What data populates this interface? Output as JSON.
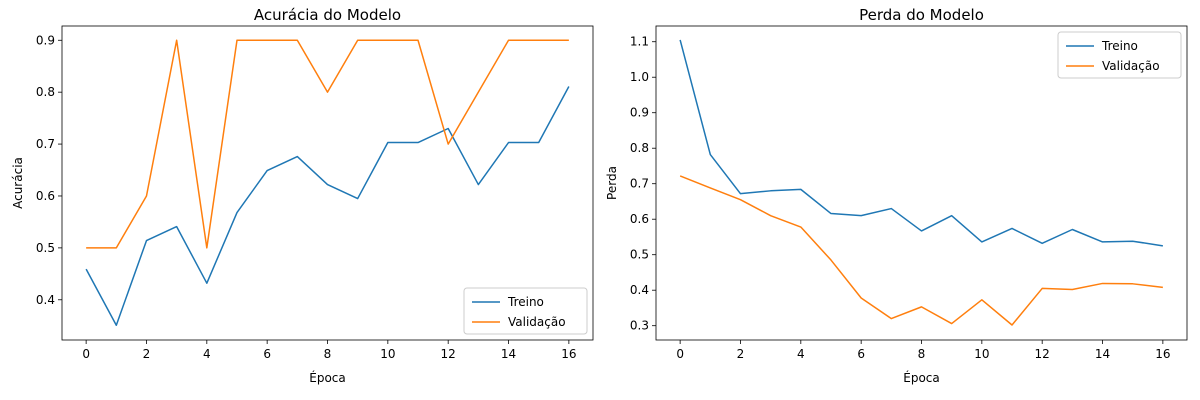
{
  "chart_data": [
    {
      "type": "line",
      "title": "Acurácia do Modelo",
      "xlabel": "Época",
      "ylabel": "Acurácia",
      "x": [
        0,
        1,
        2,
        3,
        4,
        5,
        6,
        7,
        8,
        9,
        10,
        11,
        12,
        13,
        14,
        15,
        16
      ],
      "xticks": [
        0,
        2,
        4,
        6,
        8,
        10,
        12,
        14,
        16
      ],
      "yticks": [
        0.4,
        0.5,
        0.6,
        0.7,
        0.8,
        0.9
      ],
      "xlim": [
        -0.8,
        16.8
      ],
      "ylim": [
        0.3225,
        0.9275
      ],
      "legend": "bottom-right",
      "series": [
        {
          "name": "Treino",
          "color": "#1f77b4",
          "values": [
            0.459,
            0.351,
            0.514,
            0.541,
            0.432,
            0.568,
            0.649,
            0.676,
            0.622,
            0.595,
            0.703,
            0.703,
            0.73,
            0.622,
            0.703,
            0.703,
            0.811
          ]
        },
        {
          "name": "Validação",
          "color": "#ff7f0e",
          "values": [
            0.5,
            0.5,
            0.6,
            0.9,
            0.5,
            0.9,
            0.9,
            0.9,
            0.8,
            0.9,
            0.9,
            0.9,
            0.7,
            0.8,
            0.9,
            0.9,
            0.9
          ]
        }
      ]
    },
    {
      "type": "line",
      "title": "Perda do Modelo",
      "xlabel": "Época",
      "ylabel": "Perda",
      "x": [
        0,
        1,
        2,
        3,
        4,
        5,
        6,
        7,
        8,
        9,
        10,
        11,
        12,
        13,
        14,
        15,
        16
      ],
      "xticks": [
        0,
        2,
        4,
        6,
        8,
        10,
        12,
        14,
        16
      ],
      "yticks": [
        0.3,
        0.4,
        0.5,
        0.6,
        0.7,
        0.8,
        0.9,
        1.0,
        1.1
      ],
      "xlim": [
        -0.8,
        16.8
      ],
      "ylim": [
        0.2597,
        1.1443
      ],
      "legend": "top-right",
      "series": [
        {
          "name": "Treino",
          "color": "#1f77b4",
          "values": [
            1.105,
            0.782,
            0.672,
            0.68,
            0.684,
            0.616,
            0.61,
            0.63,
            0.567,
            0.61,
            0.536,
            0.574,
            0.532,
            0.571,
            0.536,
            0.538,
            0.525
          ]
        },
        {
          "name": "Validação",
          "color": "#ff7f0e",
          "values": [
            0.722,
            0.688,
            0.655,
            0.61,
            0.578,
            0.485,
            0.378,
            0.32,
            0.353,
            0.306,
            0.373,
            0.302,
            0.405,
            0.402,
            0.419,
            0.418,
            0.408
          ]
        }
      ]
    }
  ]
}
